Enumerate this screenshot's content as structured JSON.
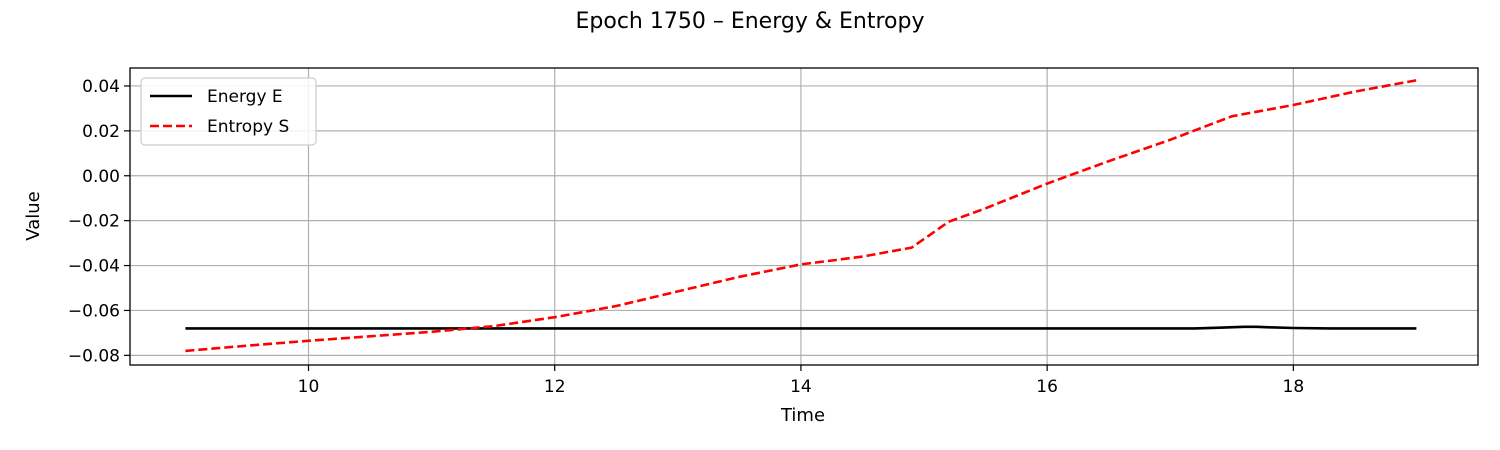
{
  "chart_data": {
    "type": "line",
    "title": "Epoch 1750 – Energy & Entropy",
    "xlabel": "Time",
    "ylabel": "Value",
    "xlim": [
      8.55,
      19.5
    ],
    "ylim": [
      -0.0843,
      0.048
    ],
    "xticks": [
      10,
      12,
      14,
      16,
      18
    ],
    "xtick_labels": [
      "10",
      "12",
      "14",
      "16",
      "18"
    ],
    "yticks": [
      -0.08,
      -0.06,
      -0.04,
      -0.02,
      0.0,
      0.02,
      0.04
    ],
    "ytick_labels": [
      "−0.08",
      "−0.06",
      "−0.04",
      "−0.02",
      "0.00",
      "0.02",
      "0.04"
    ],
    "grid": true,
    "legend_position": "upper-left",
    "series": [
      {
        "name": "Energy E",
        "color": "#000000",
        "dash": "solid",
        "x": [
          9.0,
          10.0,
          11.0,
          12.0,
          13.0,
          14.0,
          15.0,
          16.0,
          17.0,
          17.2,
          17.4,
          17.6,
          17.7,
          17.8,
          18.0,
          18.3,
          18.6,
          19.0
        ],
        "y": [
          -0.068,
          -0.068,
          -0.068,
          -0.068,
          -0.068,
          -0.068,
          -0.068,
          -0.068,
          -0.068,
          -0.068,
          -0.0677,
          -0.0673,
          -0.0673,
          -0.0675,
          -0.0678,
          -0.068,
          -0.068,
          -0.068
        ]
      },
      {
        "name": "Entropy S",
        "color": "#ff0000",
        "dash": "dashed",
        "x": [
          9.0,
          9.5,
          10.0,
          10.5,
          11.0,
          11.5,
          12.0,
          12.5,
          13.0,
          13.5,
          14.0,
          14.5,
          14.9,
          15.2,
          15.5,
          16.0,
          16.5,
          17.0,
          17.5,
          18.0,
          18.5,
          19.0
        ],
        "y": [
          -0.078,
          -0.0757,
          -0.0735,
          -0.0715,
          -0.0695,
          -0.067,
          -0.063,
          -0.058,
          -0.0515,
          -0.045,
          -0.0395,
          -0.036,
          -0.032,
          -0.0205,
          -0.0145,
          -0.0035,
          0.0065,
          0.016,
          0.0265,
          0.0315,
          0.0375,
          0.0425
        ]
      }
    ]
  }
}
